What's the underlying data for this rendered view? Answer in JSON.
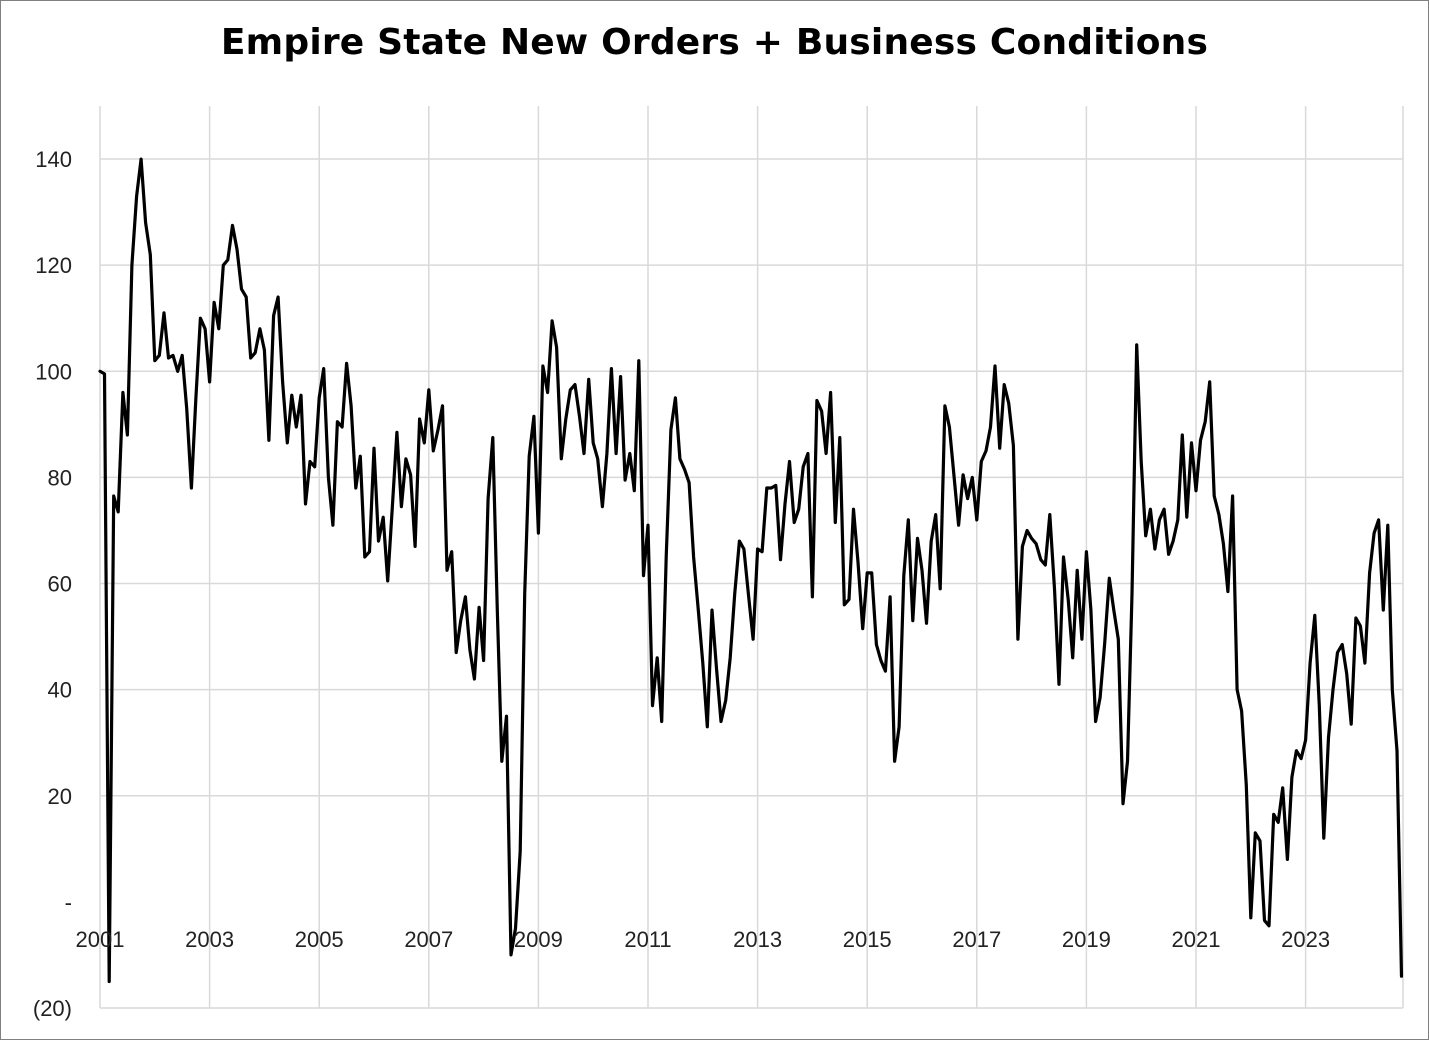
{
  "chart_data": {
    "type": "line",
    "title": "Empire State New Orders + Business Conditions",
    "xlabel": "",
    "ylabel": "",
    "xlim": [
      2001.0,
      2024.833
    ],
    "ylim": [
      -20,
      150
    ],
    "x_ticks": [
      2001,
      2003,
      2005,
      2007,
      2009,
      2011,
      2013,
      2015,
      2017,
      2019,
      2021,
      2023
    ],
    "x_tick_labels": [
      "2001",
      "2003",
      "2005",
      "2007",
      "2009",
      "2011",
      "2013",
      "2015",
      "2017",
      "2019",
      "2021",
      "2023"
    ],
    "y_ticks": [
      -20,
      0,
      20,
      40,
      60,
      80,
      100,
      120,
      140
    ],
    "y_tick_labels": [
      "(20)",
      "-",
      "20",
      "40",
      "60",
      "80",
      "100",
      "120",
      "140"
    ],
    "grid": true,
    "legend": "none",
    "colors": {
      "line": "#000000",
      "grid": "#d9d9d9"
    },
    "series": [
      {
        "values": [
          [
            2001.0,
            100.0
          ],
          [
            2001.083,
            99.5
          ],
          [
            2001.167,
            -15.0
          ],
          [
            2001.25,
            76.5
          ],
          [
            2001.333,
            73.5
          ],
          [
            2001.417,
            96.0
          ],
          [
            2001.5,
            88.0
          ],
          [
            2001.583,
            120.0
          ],
          [
            2001.667,
            133.0
          ],
          [
            2001.75,
            140.0
          ],
          [
            2001.833,
            128.0
          ],
          [
            2001.917,
            122.0
          ],
          [
            2002.0,
            102.0
          ],
          [
            2002.083,
            103.0
          ],
          [
            2002.167,
            111.0
          ],
          [
            2002.25,
            102.5
          ],
          [
            2002.333,
            103.0
          ],
          [
            2002.417,
            100.0
          ],
          [
            2002.5,
            103.0
          ],
          [
            2002.583,
            93.0
          ],
          [
            2002.667,
            78.0
          ],
          [
            2002.75,
            95.0
          ],
          [
            2002.833,
            110.0
          ],
          [
            2002.917,
            108.0
          ],
          [
            2003.0,
            98.0
          ],
          [
            2003.083,
            113.0
          ],
          [
            2003.167,
            108.0
          ],
          [
            2003.25,
            120.0
          ],
          [
            2003.333,
            121.0
          ],
          [
            2003.417,
            127.5
          ],
          [
            2003.5,
            123.0
          ],
          [
            2003.583,
            115.5
          ],
          [
            2003.667,
            114.0
          ],
          [
            2003.75,
            102.5
          ],
          [
            2003.833,
            103.5
          ],
          [
            2003.917,
            108.0
          ],
          [
            2004.0,
            104.0
          ],
          [
            2004.083,
            87.0
          ],
          [
            2004.167,
            110.5
          ],
          [
            2004.25,
            114.0
          ],
          [
            2004.333,
            98.0
          ],
          [
            2004.417,
            86.5
          ],
          [
            2004.5,
            95.5
          ],
          [
            2004.583,
            89.5
          ],
          [
            2004.667,
            95.5
          ],
          [
            2004.75,
            75.0
          ],
          [
            2004.833,
            83.0
          ],
          [
            2004.917,
            82.0
          ],
          [
            2005.0,
            95.0
          ],
          [
            2005.083,
            100.5
          ],
          [
            2005.167,
            80.0
          ],
          [
            2005.25,
            71.0
          ],
          [
            2005.333,
            90.5
          ],
          [
            2005.417,
            89.5
          ],
          [
            2005.5,
            101.5
          ],
          [
            2005.583,
            93.5
          ],
          [
            2005.667,
            78.0
          ],
          [
            2005.75,
            84.0
          ],
          [
            2005.833,
            65.0
          ],
          [
            2005.917,
            66.0
          ],
          [
            2006.0,
            85.5
          ],
          [
            2006.083,
            68.0
          ],
          [
            2006.167,
            72.5
          ],
          [
            2006.25,
            60.5
          ],
          [
            2006.333,
            74.0
          ],
          [
            2006.417,
            88.5
          ],
          [
            2006.5,
            74.5
          ],
          [
            2006.583,
            83.5
          ],
          [
            2006.667,
            80.5
          ],
          [
            2006.75,
            67.0
          ],
          [
            2006.833,
            91.0
          ],
          [
            2006.917,
            86.5
          ],
          [
            2007.0,
            96.5
          ],
          [
            2007.083,
            85.0
          ],
          [
            2007.167,
            89.0
          ],
          [
            2007.25,
            93.5
          ],
          [
            2007.333,
            62.5
          ],
          [
            2007.417,
            66.0
          ],
          [
            2007.5,
            47.0
          ],
          [
            2007.583,
            53.0
          ],
          [
            2007.667,
            57.5
          ],
          [
            2007.75,
            47.5
          ],
          [
            2007.833,
            42.0
          ],
          [
            2007.917,
            55.5
          ],
          [
            2008.0,
            45.5
          ],
          [
            2008.083,
            76.0
          ],
          [
            2008.167,
            87.5
          ],
          [
            2008.25,
            55.0
          ],
          [
            2008.333,
            26.5
          ],
          [
            2008.417,
            35.0
          ],
          [
            2008.5,
            -10.0
          ],
          [
            2008.583,
            -5.0
          ],
          [
            2008.667,
            9.5
          ],
          [
            2008.75,
            58.0
          ],
          [
            2008.833,
            84.0
          ],
          [
            2008.917,
            91.5
          ],
          [
            2009.0,
            69.5
          ],
          [
            2009.083,
            101.0
          ],
          [
            2009.167,
            96.0
          ],
          [
            2009.25,
            109.5
          ],
          [
            2009.333,
            104.5
          ],
          [
            2009.417,
            83.5
          ],
          [
            2009.5,
            91.0
          ],
          [
            2009.583,
            96.5
          ],
          [
            2009.667,
            97.5
          ],
          [
            2009.75,
            91.5
          ],
          [
            2009.833,
            84.5
          ],
          [
            2009.917,
            98.5
          ],
          [
            2010.0,
            86.5
          ],
          [
            2010.083,
            83.5
          ],
          [
            2010.167,
            74.5
          ],
          [
            2010.25,
            84.5
          ],
          [
            2010.333,
            100.5
          ],
          [
            2010.417,
            84.5
          ],
          [
            2010.5,
            99.0
          ],
          [
            2010.583,
            79.5
          ],
          [
            2010.667,
            84.5
          ],
          [
            2010.75,
            77.5
          ],
          [
            2010.833,
            102.0
          ],
          [
            2010.917,
            61.5
          ],
          [
            2011.0,
            71.0
          ],
          [
            2011.083,
            37.0
          ],
          [
            2011.167,
            46.0
          ],
          [
            2011.25,
            34.0
          ],
          [
            2011.333,
            65.0
          ],
          [
            2011.417,
            89.0
          ],
          [
            2011.5,
            95.0
          ],
          [
            2011.583,
            83.5
          ],
          [
            2011.667,
            81.5
          ],
          [
            2011.75,
            79.0
          ],
          [
            2011.833,
            65.0
          ],
          [
            2011.917,
            55.0
          ],
          [
            2012.0,
            45.0
          ],
          [
            2012.083,
            33.0
          ],
          [
            2012.167,
            55.0
          ],
          [
            2012.25,
            44.0
          ],
          [
            2012.333,
            34.0
          ],
          [
            2012.417,
            38.0
          ],
          [
            2012.5,
            46.0
          ],
          [
            2012.583,
            58.0
          ],
          [
            2012.667,
            68.0
          ],
          [
            2012.75,
            66.5
          ],
          [
            2012.833,
            58.0
          ],
          [
            2012.917,
            49.5
          ],
          [
            2013.0,
            66.5
          ],
          [
            2013.083,
            66.0
          ],
          [
            2013.167,
            78.0
          ],
          [
            2013.25,
            78.0
          ],
          [
            2013.333,
            78.5
          ],
          [
            2013.417,
            64.5
          ],
          [
            2013.5,
            75.0
          ],
          [
            2013.583,
            83.0
          ],
          [
            2013.667,
            71.5
          ],
          [
            2013.75,
            74.0
          ],
          [
            2013.833,
            82.0
          ],
          [
            2013.917,
            84.5
          ],
          [
            2014.0,
            57.5
          ],
          [
            2014.083,
            94.5
          ],
          [
            2014.167,
            92.5
          ],
          [
            2014.25,
            84.5
          ],
          [
            2014.333,
            96.0
          ],
          [
            2014.417,
            71.5
          ],
          [
            2014.5,
            87.5
          ],
          [
            2014.583,
            56.0
          ],
          [
            2014.667,
            57.0
          ],
          [
            2014.75,
            74.0
          ],
          [
            2014.833,
            64.0
          ],
          [
            2014.917,
            51.5
          ],
          [
            2015.0,
            62.0
          ],
          [
            2015.083,
            62.0
          ],
          [
            2015.167,
            48.5
          ],
          [
            2015.25,
            45.5
          ],
          [
            2015.333,
            43.5
          ],
          [
            2015.417,
            57.5
          ],
          [
            2015.5,
            26.5
          ],
          [
            2015.583,
            33.0
          ],
          [
            2015.667,
            61.5
          ],
          [
            2015.75,
            72.0
          ],
          [
            2015.833,
            53.0
          ],
          [
            2015.917,
            68.5
          ],
          [
            2016.0,
            62.5
          ],
          [
            2016.083,
            52.5
          ],
          [
            2016.167,
            68.0
          ],
          [
            2016.25,
            73.0
          ],
          [
            2016.333,
            59.0
          ],
          [
            2016.417,
            93.5
          ],
          [
            2016.5,
            89.5
          ],
          [
            2016.583,
            80.5
          ],
          [
            2016.667,
            71.0
          ],
          [
            2016.75,
            80.5
          ],
          [
            2016.833,
            76.0
          ],
          [
            2016.917,
            80.0
          ],
          [
            2017.0,
            72.0
          ],
          [
            2017.083,
            83.0
          ],
          [
            2017.167,
            85.0
          ],
          [
            2017.25,
            89.5
          ],
          [
            2017.333,
            101.0
          ],
          [
            2017.417,
            85.5
          ],
          [
            2017.5,
            97.5
          ],
          [
            2017.583,
            94.0
          ],
          [
            2017.667,
            86.0
          ],
          [
            2017.75,
            49.5
          ],
          [
            2017.833,
            67.0
          ],
          [
            2017.917,
            70.0
          ],
          [
            2018.0,
            68.5
          ],
          [
            2018.083,
            67.5
          ],
          [
            2018.167,
            64.5
          ],
          [
            2018.25,
            63.5
          ],
          [
            2018.333,
            73.0
          ],
          [
            2018.417,
            59.0
          ],
          [
            2018.5,
            41.0
          ],
          [
            2018.583,
            65.0
          ],
          [
            2018.667,
            57.0
          ],
          [
            2018.75,
            46.0
          ],
          [
            2018.833,
            62.5
          ],
          [
            2018.917,
            49.5
          ],
          [
            2019.0,
            66.0
          ],
          [
            2019.083,
            55.0
          ],
          [
            2019.167,
            34.0
          ],
          [
            2019.25,
            38.5
          ],
          [
            2019.333,
            48.5
          ],
          [
            2019.417,
            61.0
          ],
          [
            2019.5,
            55.0
          ],
          [
            2019.583,
            49.5
          ],
          [
            2019.667,
            18.5
          ],
          [
            2019.75,
            26.5
          ],
          [
            2019.833,
            58.0
          ],
          [
            2019.917,
            105.0
          ],
          [
            2020.0,
            83.0
          ],
          [
            2020.083,
            69.0
          ],
          [
            2020.167,
            74.0
          ],
          [
            2020.25,
            66.5
          ],
          [
            2020.333,
            72.0
          ],
          [
            2020.417,
            74.0
          ],
          [
            2020.5,
            65.5
          ],
          [
            2020.583,
            68.0
          ],
          [
            2020.667,
            72.0
          ],
          [
            2020.75,
            88.0
          ],
          [
            2020.833,
            72.5
          ],
          [
            2020.917,
            86.5
          ],
          [
            2021.0,
            77.5
          ],
          [
            2021.083,
            87.0
          ],
          [
            2021.167,
            90.5
          ],
          [
            2021.25,
            98.0
          ],
          [
            2021.333,
            76.5
          ],
          [
            2021.417,
            73.0
          ],
          [
            2021.5,
            67.5
          ],
          [
            2021.583,
            58.5
          ],
          [
            2021.667,
            76.5
          ],
          [
            2021.75,
            40.0
          ],
          [
            2021.833,
            36.0
          ],
          [
            2021.917,
            22.0
          ],
          [
            2022.0,
            -3.0
          ],
          [
            2022.083,
            13.0
          ],
          [
            2022.167,
            11.5
          ],
          [
            2022.25,
            -3.5
          ],
          [
            2022.333,
            -4.5
          ],
          [
            2022.417,
            16.5
          ],
          [
            2022.5,
            15.0
          ],
          [
            2022.583,
            21.5
          ],
          [
            2022.667,
            8.0
          ],
          [
            2022.75,
            23.5
          ],
          [
            2022.833,
            28.5
          ],
          [
            2022.917,
            27.0
          ],
          [
            2023.0,
            30.5
          ],
          [
            2023.083,
            45.0
          ],
          [
            2023.167,
            54.0
          ],
          [
            2023.25,
            37.0
          ],
          [
            2023.333,
            12.0
          ],
          [
            2023.417,
            31.0
          ],
          [
            2023.5,
            40.0
          ],
          [
            2023.583,
            47.0
          ],
          [
            2023.667,
            48.5
          ],
          [
            2023.75,
            43.0
          ],
          [
            2023.833,
            33.5
          ],
          [
            2023.917,
            53.5
          ],
          [
            2024.0,
            52.0
          ],
          [
            2024.083,
            45.0
          ],
          [
            2024.167,
            62.0
          ],
          [
            2024.25,
            69.5
          ],
          [
            2024.333,
            72.0
          ],
          [
            2024.417,
            55.0
          ],
          [
            2024.5,
            71.0
          ],
          [
            2024.583,
            40.0
          ],
          [
            2024.667,
            28.5
          ],
          [
            2024.75,
            -14.0
          ]
        ]
      }
    ]
  }
}
